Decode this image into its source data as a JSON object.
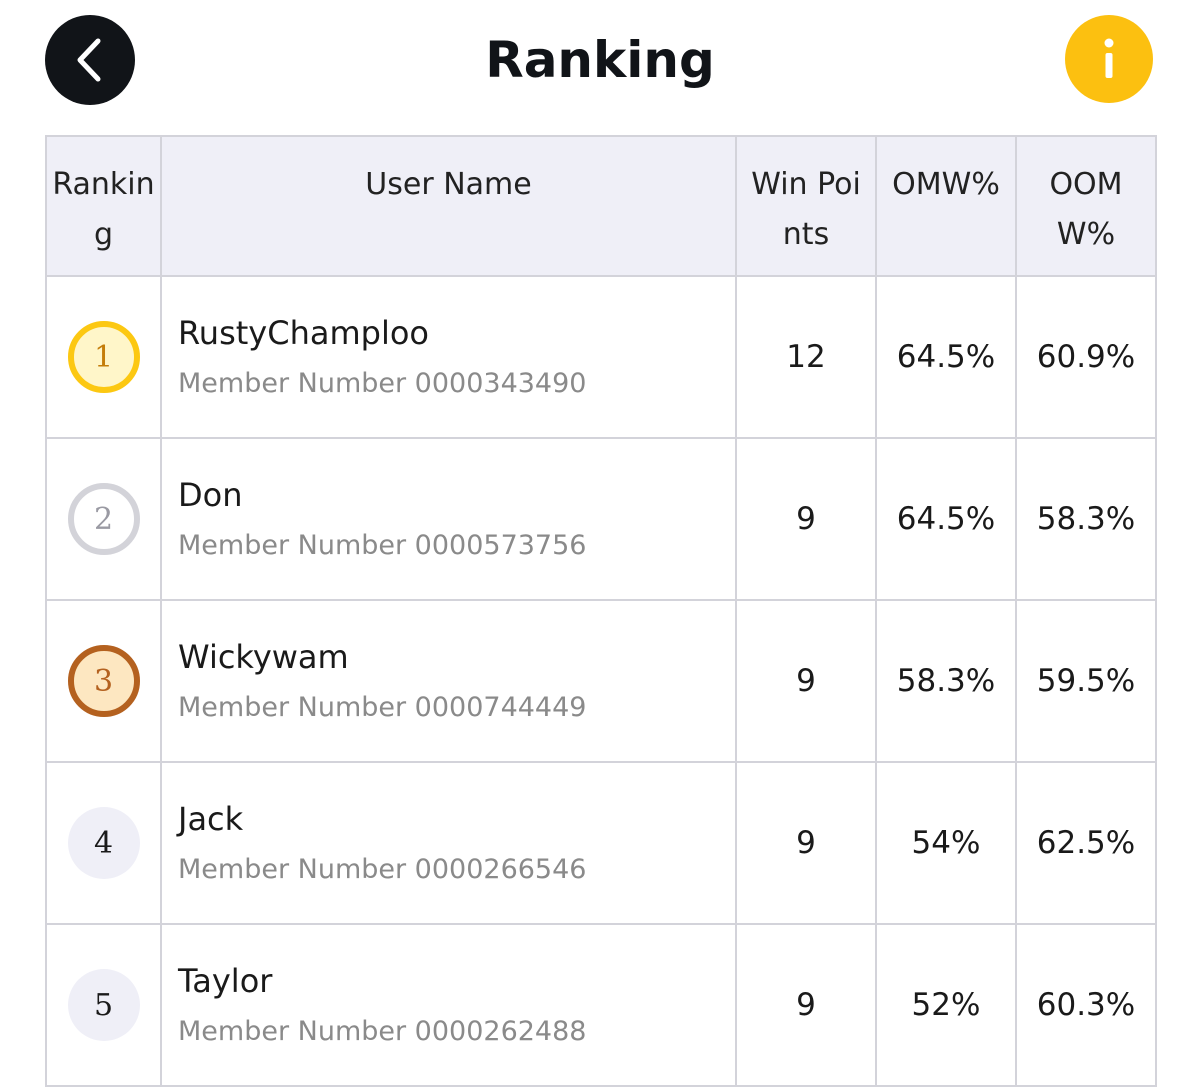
{
  "header": {
    "title": "Ranking",
    "back_icon": "chevron-left-icon",
    "info_icon": "info-icon",
    "info_label": "i"
  },
  "table": {
    "columns": [
      "Ranking",
      "User Name",
      "Win Points",
      "OMW%",
      "OOMW%"
    ],
    "rows": [
      {
        "rank": "1",
        "name": "RustyChamploo",
        "member": "Member Number 0000343490",
        "win_points": "12",
        "omw": "64.5%",
        "oomw": "60.9%",
        "medal": "gold"
      },
      {
        "rank": "2",
        "name": "Don",
        "member": "Member Number 0000573756",
        "win_points": "9",
        "omw": "64.5%",
        "oomw": "58.3%",
        "medal": "silver"
      },
      {
        "rank": "3",
        "name": "Wickywam",
        "member": "Member Number 0000744449",
        "win_points": "9",
        "omw": "58.3%",
        "oomw": "59.5%",
        "medal": "bronze"
      },
      {
        "rank": "4",
        "name": "Jack",
        "member": "Member Number 0000266546",
        "win_points": "9",
        "omw": "54%",
        "oomw": "62.5%",
        "medal": "none"
      },
      {
        "rank": "5",
        "name": "Taylor",
        "member": "Member Number 0000262488",
        "win_points": "9",
        "omw": "52%",
        "oomw": "60.3%",
        "medal": "none"
      }
    ]
  },
  "colors": {
    "back_button_bg": "#111418",
    "info_button_bg": "#fcc010",
    "header_row_bg": "#efeff7",
    "gold": "#fcc812",
    "silver": "#d3d3d9",
    "bronze": "#b4611f"
  }
}
